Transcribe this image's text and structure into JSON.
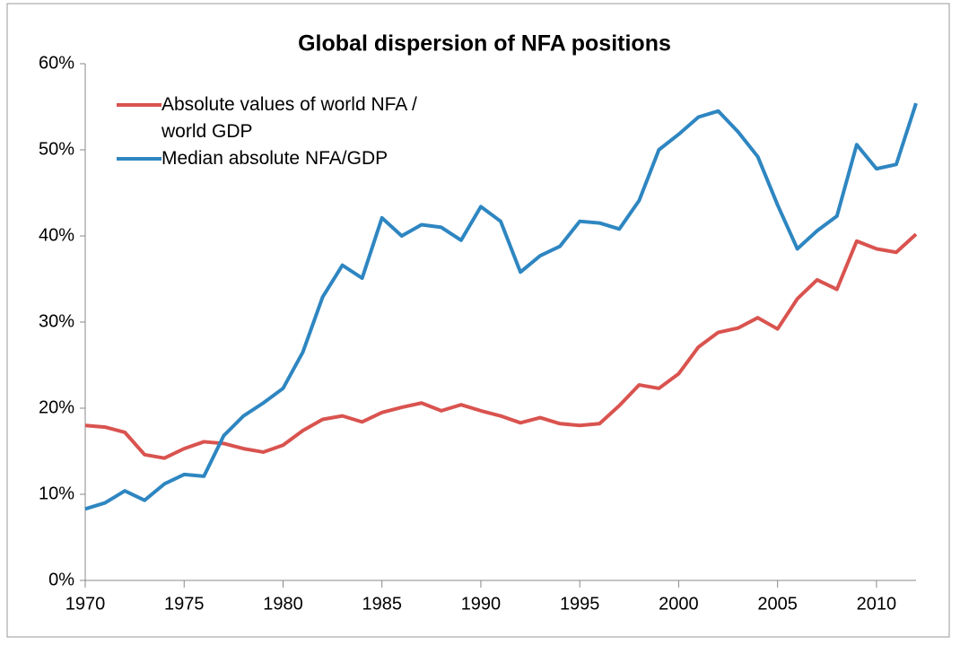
{
  "chart_data": {
    "type": "line",
    "title": "Global dispersion of NFA positions",
    "x": [
      1970,
      1971,
      1972,
      1973,
      1974,
      1975,
      1976,
      1977,
      1978,
      1979,
      1980,
      1981,
      1982,
      1983,
      1984,
      1985,
      1986,
      1987,
      1988,
      1989,
      1990,
      1991,
      1992,
      1993,
      1994,
      1995,
      1996,
      1997,
      1998,
      1999,
      2000,
      2001,
      2002,
      2003,
      2004,
      2005,
      2006,
      2007,
      2008,
      2009,
      2010,
      2011,
      2012
    ],
    "series": [
      {
        "name": "Absolute values of world NFA / world GDP",
        "color": "#d9534f",
        "values": [
          18.0,
          17.8,
          17.2,
          14.6,
          14.2,
          15.3,
          16.1,
          15.9,
          15.3,
          14.9,
          15.7,
          17.4,
          18.7,
          19.1,
          18.4,
          19.5,
          20.1,
          20.6,
          19.7,
          20.4,
          19.7,
          19.1,
          18.3,
          18.9,
          18.2,
          18.0,
          18.2,
          20.3,
          22.7,
          22.3,
          24.0,
          27.1,
          28.8,
          29.3,
          30.5,
          29.2,
          32.7,
          34.9,
          33.8,
          39.4,
          38.5,
          38.1,
          40.2
        ]
      },
      {
        "name": "Median absolute NFA/GDP",
        "color": "#2e86c1",
        "values": [
          8.3,
          9.0,
          10.4,
          9.3,
          11.2,
          12.3,
          12.1,
          16.8,
          19.1,
          20.6,
          22.3,
          26.5,
          32.9,
          36.6,
          35.1,
          42.1,
          40.0,
          41.3,
          41.0,
          39.5,
          43.4,
          41.7,
          35.8,
          37.7,
          38.8,
          41.7,
          41.5,
          40.8,
          44.1,
          50.0,
          51.8,
          53.8,
          54.5,
          52.1,
          49.2,
          43.6,
          38.5,
          40.6,
          42.3,
          50.6,
          47.8,
          48.3,
          55.4
        ]
      }
    ],
    "xlim": [
      1970,
      2012
    ],
    "xticks": [
      1970,
      1975,
      1980,
      1985,
      1990,
      1995,
      2000,
      2005,
      2010
    ],
    "ylim": [
      0,
      60
    ],
    "yticks": [
      {
        "value": 0,
        "label": "0%"
      },
      {
        "value": 10,
        "label": "10%"
      },
      {
        "value": 20,
        "label": "20%"
      },
      {
        "value": 30,
        "label": "30%"
      },
      {
        "value": 40,
        "label": "40%"
      },
      {
        "value": 50,
        "label": "50%"
      },
      {
        "value": 60,
        "label": "60%"
      }
    ],
    "legend": "upper left",
    "grid": false
  }
}
